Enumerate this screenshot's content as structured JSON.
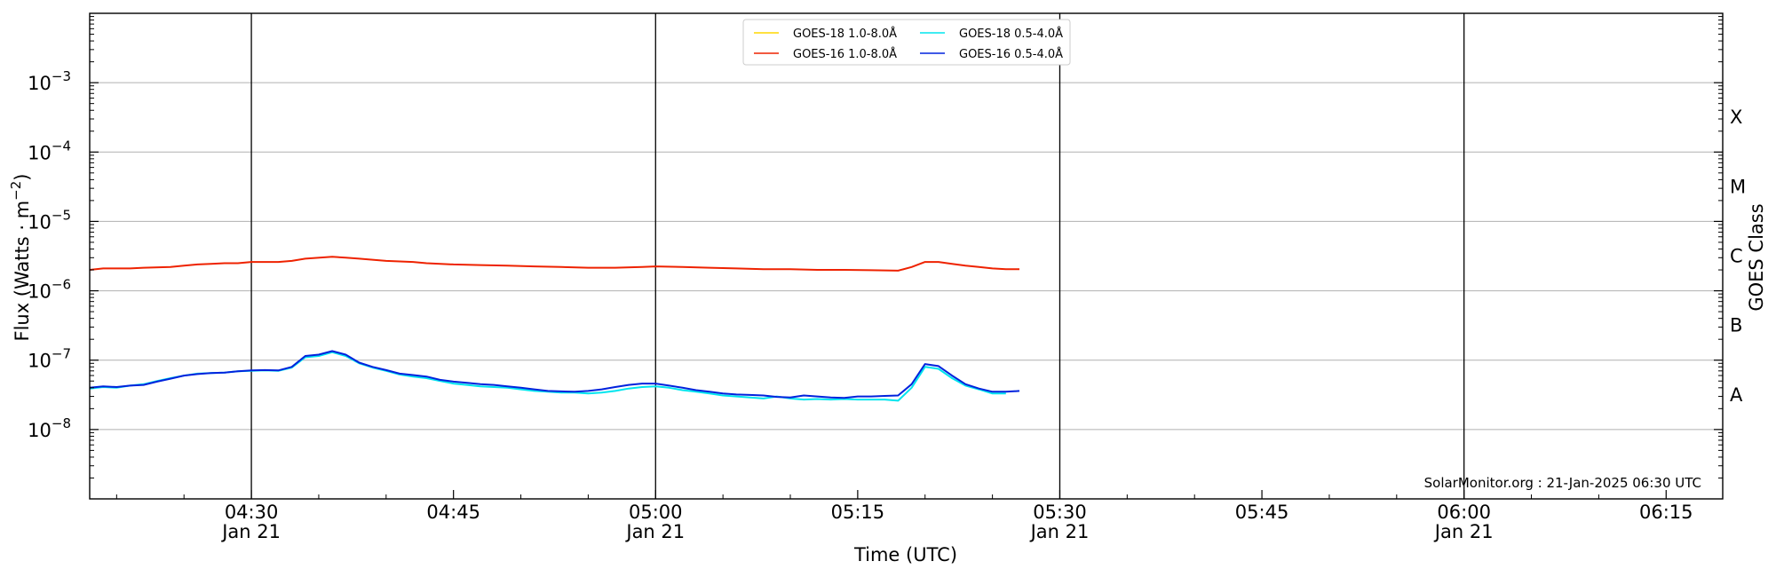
{
  "chart_data": {
    "type": "line",
    "title": "",
    "xlabel": "Time (UTC)",
    "ylabel": "Flux (Watts · m",
    "ylabel_exponent": "−2",
    "ylabel_close": ")",
    "ylabel_right": "GOES Class",
    "yscale": "log",
    "ylim_exponent": [
      -9,
      -2
    ],
    "yticks": [
      {
        "base": "10",
        "exp": "−8",
        "power": -8
      },
      {
        "base": "10",
        "exp": "−7",
        "power": -7
      },
      {
        "base": "10",
        "exp": "−6",
        "power": -6
      },
      {
        "base": "10",
        "exp": "−5",
        "power": -5
      },
      {
        "base": "10",
        "exp": "−4",
        "power": -4
      },
      {
        "base": "10",
        "exp": "−3",
        "power": -3
      }
    ],
    "classes": [
      {
        "label": "A",
        "power": -7.5
      },
      {
        "label": "B",
        "power": -6.5
      },
      {
        "label": "C",
        "power": -5.5
      },
      {
        "label": "M",
        "power": -4.5
      },
      {
        "label": "X",
        "power": -3.5
      }
    ],
    "xlim_minutes": [
      258,
      342
    ],
    "xticks": [
      {
        "minute": 270,
        "time": "04:30",
        "date": "Jan 21"
      },
      {
        "minute": 285,
        "time": "04:45",
        "date": ""
      },
      {
        "minute": 300,
        "time": "05:00",
        "date": "Jan 21"
      },
      {
        "minute": 315,
        "time": "05:15",
        "date": ""
      },
      {
        "minute": 330,
        "time": "05:30",
        "date": "Jan 21"
      },
      {
        "minute": 345,
        "time": "05:45",
        "date": ""
      },
      {
        "minute": 360,
        "time": "06:00",
        "date": "Jan 21"
      },
      {
        "minute": 375,
        "time": "06:15",
        "date": ""
      }
    ],
    "vlines": [
      270,
      300,
      330,
      360
    ],
    "grid": "horizontal",
    "legend_position": "top-center",
    "series": [
      {
        "name": "GOES-18 1.0-8.0Å",
        "color": "#ffd700",
        "points": []
      },
      {
        "name": "GOES-16 1.0-8.0Å",
        "color": "#ee2200",
        "points": [
          [
            258,
            2e-06
          ],
          [
            259,
            2.1e-06
          ],
          [
            261,
            2.1e-06
          ],
          [
            262,
            2.15e-06
          ],
          [
            264,
            2.2e-06
          ],
          [
            265,
            2.3e-06
          ],
          [
            266,
            2.4e-06
          ],
          [
            267,
            2.45e-06
          ],
          [
            268,
            2.5e-06
          ],
          [
            269,
            2.5e-06
          ],
          [
            270,
            2.6e-06
          ],
          [
            271,
            2.6e-06
          ],
          [
            272,
            2.6e-06
          ],
          [
            273,
            2.7e-06
          ],
          [
            274,
            2.9e-06
          ],
          [
            276,
            3.1e-06
          ],
          [
            277,
            3e-06
          ],
          [
            278,
            2.9e-06
          ],
          [
            279,
            2.8e-06
          ],
          [
            280,
            2.7e-06
          ],
          [
            282,
            2.6e-06
          ],
          [
            283,
            2.5e-06
          ],
          [
            285,
            2.4e-06
          ],
          [
            287,
            2.35e-06
          ],
          [
            289,
            2.3e-06
          ],
          [
            291,
            2.25e-06
          ],
          [
            293,
            2.2e-06
          ],
          [
            295,
            2.15e-06
          ],
          [
            297,
            2.15e-06
          ],
          [
            299,
            2.2e-06
          ],
          [
            300,
            2.25e-06
          ],
          [
            302,
            2.2e-06
          ],
          [
            304,
            2.15e-06
          ],
          [
            306,
            2.1e-06
          ],
          [
            308,
            2.05e-06
          ],
          [
            310,
            2.05e-06
          ],
          [
            312,
            2e-06
          ],
          [
            314,
            2e-06
          ],
          [
            316,
            1.98e-06
          ],
          [
            318,
            1.95e-06
          ],
          [
            319,
            2.2e-06
          ],
          [
            320,
            2.6e-06
          ],
          [
            321,
            2.6e-06
          ],
          [
            322,
            2.45e-06
          ],
          [
            323,
            2.3e-06
          ],
          [
            324,
            2.2e-06
          ],
          [
            325,
            2.1e-06
          ],
          [
            326,
            2.05e-06
          ],
          [
            327,
            2.05e-06
          ]
        ]
      },
      {
        "name": "GOES-18 0.5-4.0Å",
        "color": "#00e5ee",
        "points": [
          [
            258,
            3.9e-08
          ],
          [
            259,
            4.1e-08
          ],
          [
            260,
            4e-08
          ],
          [
            261,
            4.3e-08
          ],
          [
            262,
            4.5e-08
          ],
          [
            263,
            5e-08
          ],
          [
            264,
            5.5e-08
          ],
          [
            265,
            6e-08
          ],
          [
            266,
            6.4e-08
          ],
          [
            267,
            6.5e-08
          ],
          [
            268,
            6.6e-08
          ],
          [
            269,
            6.9e-08
          ],
          [
            270,
            7e-08
          ],
          [
            271,
            7.1e-08
          ],
          [
            272,
            7e-08
          ],
          [
            273,
            7.8e-08
          ],
          [
            274,
            1.1e-07
          ],
          [
            275,
            1.15e-07
          ],
          [
            276,
            1.3e-07
          ],
          [
            277,
            1.15e-07
          ],
          [
            278,
            9e-08
          ],
          [
            279,
            7.8e-08
          ],
          [
            280,
            7e-08
          ],
          [
            281,
            6.2e-08
          ],
          [
            282,
            5.8e-08
          ],
          [
            283,
            5.5e-08
          ],
          [
            284,
            5e-08
          ],
          [
            285,
            4.6e-08
          ],
          [
            286,
            4.4e-08
          ],
          [
            287,
            4.2e-08
          ],
          [
            288,
            4.1e-08
          ],
          [
            289,
            4e-08
          ],
          [
            290,
            3.8e-08
          ],
          [
            291,
            3.6e-08
          ],
          [
            292,
            3.5e-08
          ],
          [
            293,
            3.4e-08
          ],
          [
            294,
            3.4e-08
          ],
          [
            295,
            3.3e-08
          ],
          [
            296,
            3.4e-08
          ],
          [
            297,
            3.6e-08
          ],
          [
            298,
            3.9e-08
          ],
          [
            299,
            4.1e-08
          ],
          [
            300,
            4.2e-08
          ],
          [
            301,
            4e-08
          ],
          [
            302,
            3.7e-08
          ],
          [
            303,
            3.5e-08
          ],
          [
            304,
            3.3e-08
          ],
          [
            305,
            3.1e-08
          ],
          [
            306,
            3e-08
          ],
          [
            307,
            2.9e-08
          ],
          [
            308,
            2.8e-08
          ],
          [
            309,
            3e-08
          ],
          [
            310,
            2.8e-08
          ],
          [
            311,
            2.7e-08
          ],
          [
            312,
            2.75e-08
          ],
          [
            313,
            2.7e-08
          ],
          [
            314,
            2.75e-08
          ],
          [
            315,
            2.7e-08
          ],
          [
            316,
            2.7e-08
          ],
          [
            317,
            2.7e-08
          ],
          [
            318,
            2.6e-08
          ],
          [
            319,
            4e-08
          ],
          [
            320,
            8e-08
          ],
          [
            321,
            7.5e-08
          ],
          [
            322,
            5.5e-08
          ],
          [
            323,
            4.3e-08
          ],
          [
            324,
            3.8e-08
          ],
          [
            325,
            3.3e-08
          ],
          [
            326,
            3.3e-08
          ]
        ]
      },
      {
        "name": "GOES-16 0.5-4.0Å",
        "color": "#0022dd",
        "points": [
          [
            258,
            4e-08
          ],
          [
            259,
            4.2e-08
          ],
          [
            260,
            4.1e-08
          ],
          [
            261,
            4.3e-08
          ],
          [
            262,
            4.4e-08
          ],
          [
            263,
            4.9e-08
          ],
          [
            264,
            5.4e-08
          ],
          [
            265,
            6e-08
          ],
          [
            266,
            6.3e-08
          ],
          [
            267,
            6.5e-08
          ],
          [
            268,
            6.6e-08
          ],
          [
            269,
            6.9e-08
          ],
          [
            270,
            7.1e-08
          ],
          [
            271,
            7.2e-08
          ],
          [
            272,
            7.1e-08
          ],
          [
            273,
            8e-08
          ],
          [
            274,
            1.15e-07
          ],
          [
            275,
            1.2e-07
          ],
          [
            276,
            1.35e-07
          ],
          [
            277,
            1.2e-07
          ],
          [
            278,
            9.2e-08
          ],
          [
            279,
            8e-08
          ],
          [
            280,
            7.2e-08
          ],
          [
            281,
            6.4e-08
          ],
          [
            282,
            6.1e-08
          ],
          [
            283,
            5.8e-08
          ],
          [
            284,
            5.2e-08
          ],
          [
            285,
            4.9e-08
          ],
          [
            286,
            4.7e-08
          ],
          [
            287,
            4.5e-08
          ],
          [
            288,
            4.4e-08
          ],
          [
            289,
            4.2e-08
          ],
          [
            290,
            4e-08
          ],
          [
            291,
            3.8e-08
          ],
          [
            292,
            3.6e-08
          ],
          [
            293,
            3.55e-08
          ],
          [
            294,
            3.5e-08
          ],
          [
            295,
            3.6e-08
          ],
          [
            296,
            3.8e-08
          ],
          [
            297,
            4.1e-08
          ],
          [
            298,
            4.4e-08
          ],
          [
            299,
            4.6e-08
          ],
          [
            300,
            4.6e-08
          ],
          [
            301,
            4.3e-08
          ],
          [
            302,
            4e-08
          ],
          [
            303,
            3.7e-08
          ],
          [
            304,
            3.5e-08
          ],
          [
            305,
            3.3e-08
          ],
          [
            306,
            3.2e-08
          ],
          [
            307,
            3.15e-08
          ],
          [
            308,
            3.1e-08
          ],
          [
            309,
            2.95e-08
          ],
          [
            310,
            2.9e-08
          ],
          [
            311,
            3.1e-08
          ],
          [
            312,
            3e-08
          ],
          [
            313,
            2.9e-08
          ],
          [
            314,
            2.85e-08
          ],
          [
            315,
            3e-08
          ],
          [
            316,
            3e-08
          ],
          [
            317,
            3.05e-08
          ],
          [
            318,
            3.1e-08
          ],
          [
            319,
            4.5e-08
          ],
          [
            320,
            8.8e-08
          ],
          [
            321,
            8.2e-08
          ],
          [
            322,
            6e-08
          ],
          [
            323,
            4.5e-08
          ],
          [
            324,
            3.9e-08
          ],
          [
            325,
            3.5e-08
          ],
          [
            326,
            3.5e-08
          ],
          [
            327,
            3.6e-08
          ]
        ]
      }
    ],
    "credit": "SolarMonitor.org : 21-Jan-2025 06:30 UTC"
  }
}
